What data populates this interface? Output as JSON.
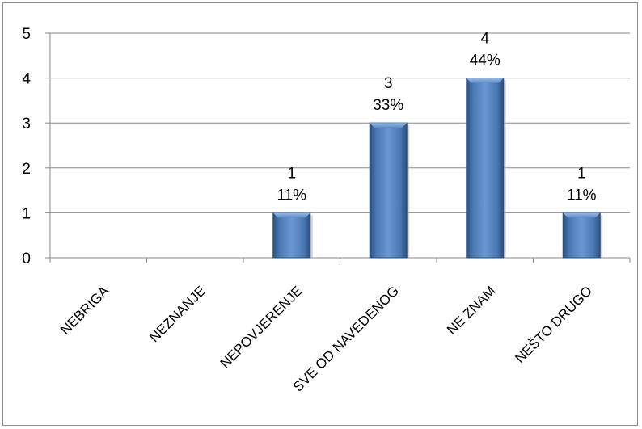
{
  "chart_data": {
    "type": "bar",
    "categories": [
      "NEBRIGA",
      "NEZNANJE",
      "NEPOVJERENJE",
      "SVE OD NAVEDENOG",
      "NE ZNAM",
      "NEŠTO DRUGO"
    ],
    "series": [
      {
        "values": [
          0,
          0,
          1,
          3,
          4,
          1
        ],
        "percent_labels": [
          "",
          "",
          "11%",
          "33%",
          "44%",
          "11%"
        ],
        "color": "#4f81bd"
      }
    ],
    "ylim": [
      0,
      5
    ],
    "yticks": [
      "0",
      "1",
      "2",
      "3",
      "4",
      "5"
    ],
    "grid": true,
    "legend": "none",
    "title": "",
    "xlabel": "",
    "ylabel": ""
  }
}
